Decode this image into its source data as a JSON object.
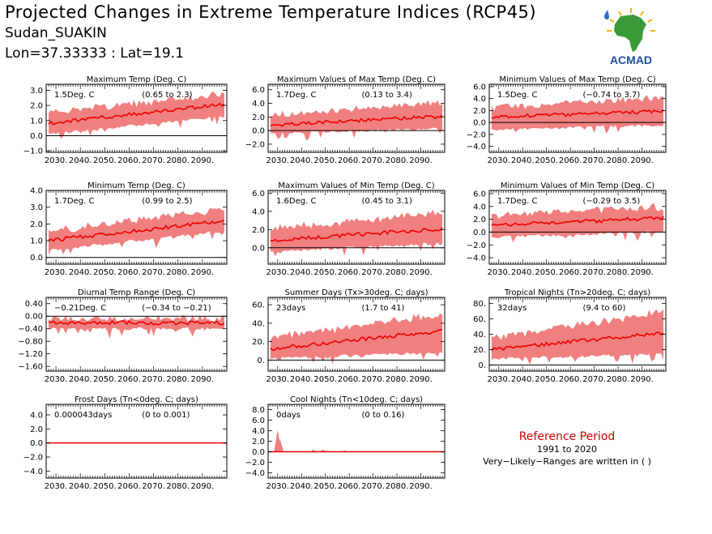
{
  "header": {
    "title": "Projected Changes in Extreme Temperature Indices (RCP45)",
    "station": "Sudan_SUAKIN",
    "coords": "Lon=37.33333 : Lat=19.1"
  },
  "logo": {
    "text": "ACMAD"
  },
  "reference": {
    "title": "Reference Period",
    "years": "1991 to 2020",
    "note": "Very−Likely−Ranges are written in ( )"
  },
  "colors": {
    "band": "#f08080",
    "line": "#ee0000",
    "axis": "#000000",
    "logo_text": "#1f4fa0",
    "logo_africa": "#3a9a3a",
    "logo_sun": "#f0b400"
  },
  "chart_data": [
    {
      "type": "area",
      "title": "Maximum Temp (Deg. C)",
      "value_label": "1.5Deg. C",
      "range_label": "(0.65 to 2.3)",
      "x_ticks": [
        "2030.",
        "2040.",
        "2050.",
        "2060.",
        "2070.",
        "2080.",
        "2090."
      ],
      "y_ticks": [
        "-1.0",
        "0.0",
        "1.0",
        "2.0",
        "3.0"
      ],
      "ylim": [
        -1.1,
        3.4
      ],
      "x_range": [
        2026,
        2100
      ],
      "series": [
        {
          "role": "median",
          "start": [
            2026,
            0.8
          ],
          "end": [
            2100,
            2.1
          ]
        },
        {
          "role": "range_low",
          "start": [
            2026,
            0.1
          ],
          "end": [
            2100,
            1.3
          ]
        },
        {
          "role": "range_high",
          "start": [
            2026,
            1.5
          ],
          "end": [
            2100,
            2.8
          ]
        }
      ]
    },
    {
      "type": "area",
      "title": "Maximum Values of Max Temp (Deg. C)",
      "value_label": "1.7Deg. C",
      "range_label": "(0.13 to 3.4)",
      "x_ticks": [
        "2030.",
        "2040.",
        "2050.",
        "2060.",
        "2070.",
        "2080.",
        "2090."
      ],
      "y_ticks": [
        "-2.0",
        "0.0",
        "2.0",
        "4.0",
        "6.0"
      ],
      "ylim": [
        -3.2,
        6.8
      ],
      "x_range": [
        2026,
        2100
      ],
      "series": [
        {
          "role": "median",
          "start": [
            2026,
            0.8
          ],
          "end": [
            2100,
            2.1
          ]
        },
        {
          "role": "range_low",
          "start": [
            2026,
            -0.4
          ],
          "end": [
            2100,
            0.3
          ]
        },
        {
          "role": "range_high",
          "start": [
            2026,
            2.2
          ],
          "end": [
            2100,
            4.2
          ]
        }
      ]
    },
    {
      "type": "area",
      "title": "Minimum Values of Max Temp (Deg. C)",
      "value_label": "1.5Deg. C",
      "range_label": "(−0.74 to 3.7)",
      "x_ticks": [
        "2030.",
        "2040.",
        "2050.",
        "2060.",
        "2070.",
        "2080.",
        "2090."
      ],
      "y_ticks": [
        "-4.0",
        "-2.0",
        "0.0",
        "2.0",
        "4.0",
        "6.0"
      ],
      "ylim": [
        -5,
        6.4
      ],
      "x_range": [
        2026,
        2100
      ],
      "series": [
        {
          "role": "median",
          "start": [
            2026,
            0.9
          ],
          "end": [
            2100,
            1.9
          ]
        },
        {
          "role": "range_low",
          "start": [
            2026,
            -1.2
          ],
          "end": [
            2100,
            -0.4
          ]
        },
        {
          "role": "range_high",
          "start": [
            2026,
            2.5
          ],
          "end": [
            2100,
            4.2
          ]
        }
      ]
    },
    {
      "type": "area",
      "title": "Minimum Temp (Deg. C)",
      "value_label": "1.7Deg. C",
      "range_label": "(0.99 to 2.5)",
      "x_ticks": [
        "2030.",
        "2040.",
        "2050.",
        "2060.",
        "2070.",
        "2080.",
        "2090."
      ],
      "y_ticks": [
        "0.0",
        "1.0",
        "2.0",
        "3.0",
        "4.0"
      ],
      "ylim": [
        -0.4,
        4.0
      ],
      "x_range": [
        2026,
        2100
      ],
      "series": [
        {
          "role": "median",
          "start": [
            2026,
            1.0
          ],
          "end": [
            2100,
            2.2
          ]
        },
        {
          "role": "range_low",
          "start": [
            2026,
            0.4
          ],
          "end": [
            2100,
            1.6
          ]
        },
        {
          "role": "range_high",
          "start": [
            2026,
            1.6
          ],
          "end": [
            2100,
            2.9
          ]
        }
      ]
    },
    {
      "type": "area",
      "title": "Maximum Values of Min Temp (Deg. C)",
      "value_label": "1.6Deg. C",
      "range_label": "(0.45 to 3.1)",
      "x_ticks": [
        "2030.",
        "2040.",
        "2050.",
        "2060.",
        "2070.",
        "2080.",
        "2090."
      ],
      "y_ticks": [
        "0.0",
        "2.0",
        "4.0",
        "6.0"
      ],
      "ylim": [
        -1.8,
        6.3
      ],
      "x_range": [
        2026,
        2100
      ],
      "series": [
        {
          "role": "median",
          "start": [
            2026,
            0.8
          ],
          "end": [
            2100,
            2.1
          ]
        },
        {
          "role": "range_low",
          "start": [
            2026,
            -0.4
          ],
          "end": [
            2100,
            0.5
          ]
        },
        {
          "role": "range_high",
          "start": [
            2026,
            2.0
          ],
          "end": [
            2100,
            4.0
          ]
        }
      ]
    },
    {
      "type": "area",
      "title": "Minimum Values of Min Temp (Deg. C)",
      "value_label": "1.7Deg. C",
      "range_label": "(−0.29 to 3.5)",
      "x_ticks": [
        "2030.",
        "2040.",
        "2050.",
        "2060.",
        "2070.",
        "2080.",
        "2090."
      ],
      "y_ticks": [
        "-4.0",
        "-2.0",
        "0.0",
        "2.0",
        "4.0",
        "6.0"
      ],
      "ylim": [
        -5,
        6.5
      ],
      "x_range": [
        2026,
        2100
      ],
      "series": [
        {
          "role": "median",
          "start": [
            2026,
            1.0
          ],
          "end": [
            2100,
            2.2
          ]
        },
        {
          "role": "range_low",
          "start": [
            2026,
            -0.8
          ],
          "end": [
            2100,
            0.0
          ]
        },
        {
          "role": "range_high",
          "start": [
            2026,
            2.6
          ],
          "end": [
            2100,
            4.0
          ]
        }
      ]
    },
    {
      "type": "area",
      "title": "Diurnal Temp Range (Deg. C)",
      "value_label": "−0.21Deg. C",
      "range_label": "(−0.34 to −0.21)",
      "x_ticks": [
        "2030.",
        "2040.",
        "2050.",
        "2060.",
        "2070.",
        "2080.",
        "2090."
      ],
      "y_ticks": [
        "-1.60",
        "-1.20",
        "-0.80",
        "-0.40",
        "0.00",
        "0.40"
      ],
      "ylim": [
        -1.75,
        0.6
      ],
      "x_range": [
        2026,
        2100
      ],
      "series": [
        {
          "role": "median",
          "start": [
            2026,
            -0.2
          ],
          "end": [
            2100,
            -0.22
          ]
        },
        {
          "role": "range_low",
          "start": [
            2026,
            -0.4
          ],
          "end": [
            2100,
            -0.4
          ]
        },
        {
          "role": "range_high",
          "start": [
            2026,
            -0.08
          ],
          "end": [
            2100,
            -0.1
          ]
        }
      ]
    },
    {
      "type": "area",
      "title": "Summer Days (Tx>30deg. C; days)",
      "value_label": "23days",
      "range_label": "(1.7 to 41)",
      "x_ticks": [
        "2030.",
        "2040.",
        "2050.",
        "2060.",
        "2070.",
        "2080.",
        "2090."
      ],
      "y_ticks": [
        "0.",
        "20.",
        "40.",
        "60."
      ],
      "ylim": [
        -12,
        68
      ],
      "x_range": [
        2026,
        2100
      ],
      "series": [
        {
          "role": "median",
          "start": [
            2026,
            12
          ],
          "end": [
            2100,
            32
          ]
        },
        {
          "role": "range_low",
          "start": [
            2026,
            2
          ],
          "end": [
            2100,
            8
          ]
        },
        {
          "role": "range_high",
          "start": [
            2026,
            24
          ],
          "end": [
            2100,
            50
          ]
        }
      ]
    },
    {
      "type": "area",
      "title": "Tropical Nights (Tn>20deg. C; days)",
      "value_label": "32days",
      "range_label": "(9.4 to 60)",
      "x_ticks": [
        "2030.",
        "2040.",
        "2050.",
        "2060.",
        "2070.",
        "2080.",
        "2090."
      ],
      "y_ticks": [
        "0.",
        "20.",
        "40.",
        "60.",
        "80."
      ],
      "ylim": [
        -8,
        88
      ],
      "x_range": [
        2026,
        2100
      ],
      "series": [
        {
          "role": "median",
          "start": [
            2026,
            20
          ],
          "end": [
            2100,
            42
          ]
        },
        {
          "role": "range_low",
          "start": [
            2026,
            8
          ],
          "end": [
            2100,
            14
          ]
        },
        {
          "role": "range_high",
          "start": [
            2026,
            35
          ],
          "end": [
            2100,
            70
          ]
        }
      ]
    },
    {
      "type": "area",
      "title": "Frost Days (Tn<0deg. C; days)",
      "value_label": "0.000043days",
      "range_label": "(0 to 0.001)",
      "x_ticks": [
        "2030.",
        "2040.",
        "2050.",
        "2060.",
        "2070.",
        "2080.",
        "2090."
      ],
      "y_ticks": [
        "-4.0",
        "-2.0",
        "0.0",
        "2.0",
        "4.0"
      ],
      "ylim": [
        -5,
        5.5
      ],
      "x_range": [
        2026,
        2100
      ],
      "series": [
        {
          "role": "median",
          "start": [
            2026,
            0
          ],
          "end": [
            2100,
            0
          ]
        },
        {
          "role": "range_low",
          "start": [
            2026,
            0
          ],
          "end": [
            2100,
            0
          ]
        },
        {
          "role": "range_high",
          "start": [
            2026,
            0
          ],
          "end": [
            2100,
            0
          ]
        }
      ]
    },
    {
      "type": "area",
      "title": "Cool Nights (Tn<10deg. C; days)",
      "value_label": "0days",
      "range_label": "(0 to 0.16)",
      "x_ticks": [
        "2030.",
        "2040.",
        "2050.",
        "2060.",
        "2070.",
        "2080.",
        "2090."
      ],
      "y_ticks": [
        "-4.0",
        "-2.0",
        "0.0",
        "2.0",
        "4.0",
        "6.0",
        "8.0"
      ],
      "ylim": [
        -5,
        9
      ],
      "x_range": [
        2026,
        2100
      ],
      "series": [
        {
          "role": "median",
          "start": [
            2026,
            0
          ],
          "end": [
            2100,
            0
          ]
        },
        {
          "role": "range_low",
          "start": [
            2026,
            0
          ],
          "end": [
            2100,
            0
          ]
        },
        {
          "role": "range_high",
          "start": [
            2026,
            0
          ],
          "end": [
            2100,
            0
          ]
        }
      ],
      "spikes": [
        [
          2030,
          4.2
        ],
        [
          2031,
          2.4
        ],
        [
          2045,
          0.4
        ],
        [
          2049,
          0.4
        ],
        [
          2058,
          0.25
        ]
      ]
    }
  ]
}
